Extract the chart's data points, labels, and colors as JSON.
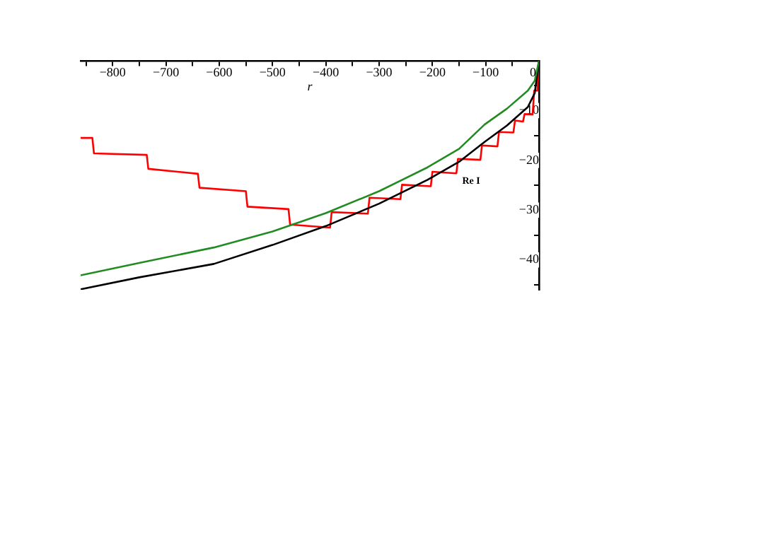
{
  "chart_data": {
    "type": "line",
    "xlabel": "r",
    "ylabel": "Re I",
    "xlim": [
      -860,
      0
    ],
    "ylim": [
      -46,
      0
    ],
    "xticks": [
      {
        "value": -850,
        "label": null
      },
      {
        "value": -800,
        "label": "−800"
      },
      {
        "value": -750,
        "label": null
      },
      {
        "value": -700,
        "label": "−700"
      },
      {
        "value": -650,
        "label": null
      },
      {
        "value": -600,
        "label": "−600"
      },
      {
        "value": -550,
        "label": null
      },
      {
        "value": -500,
        "label": "−500"
      },
      {
        "value": -450,
        "label": null
      },
      {
        "value": -400,
        "label": "−400"
      },
      {
        "value": -350,
        "label": null
      },
      {
        "value": -300,
        "label": "−300"
      },
      {
        "value": -250,
        "label": null
      },
      {
        "value": -200,
        "label": "−200"
      },
      {
        "value": -150,
        "label": null
      },
      {
        "value": -100,
        "label": "−100"
      },
      {
        "value": -50,
        "label": null
      },
      {
        "value": 0,
        "label": "0"
      }
    ],
    "yticks": [
      {
        "value": -45,
        "label": null
      },
      {
        "value": -40,
        "label": "−40"
      },
      {
        "value": -35,
        "label": null
      },
      {
        "value": -30,
        "label": "−30"
      },
      {
        "value": -25,
        "label": null
      },
      {
        "value": -20,
        "label": "−20"
      },
      {
        "value": -15,
        "label": null
      },
      {
        "value": -10,
        "label": "−10"
      },
      {
        "value": -5,
        "label": null
      }
    ],
    "grid": false,
    "legend": false,
    "marker": "none",
    "line_style": "solid",
    "series": [
      {
        "color": "#228b22",
        "x": [
          -860,
          -750,
          -610,
          -500,
          -400,
          -300,
          -209,
          -150,
          -102,
          -60,
          -21,
          -8,
          0
        ],
        "values": [
          -43.1,
          -40.6,
          -37.5,
          -34.3,
          -30.6,
          -26.2,
          -21.4,
          -17.7,
          -12.8,
          -9.6,
          -6,
          -4,
          0
        ]
      },
      {
        "color": "#000000",
        "x": [
          -860,
          -750,
          -610,
          -500,
          -400,
          -300,
          -209,
          -150,
          -102,
          -60,
          -21,
          -8,
          0
        ],
        "values": [
          -45.9,
          -43.5,
          -40.8,
          -37,
          -33.2,
          -28.7,
          -23.9,
          -20.3,
          -16.3,
          -13,
          -9.3,
          -6.5,
          0
        ]
      },
      {
        "color": "#ff0000",
        "x": [
          -860,
          -838,
          -835,
          -736,
          -733,
          -640,
          -637,
          -550,
          -547,
          -470,
          -467,
          -392,
          -389,
          -321,
          -318,
          -260,
          -257,
          -203,
          -200,
          -155,
          -152,
          -110,
          -107,
          -78,
          -75,
          -48,
          -45,
          -30,
          -27,
          -12,
          -9,
          -3,
          0
        ],
        "values": [
          -15.5,
          -15.5,
          -18.6,
          -18.9,
          -21.7,
          -22.7,
          -25.5,
          -26.2,
          -29.3,
          -29.8,
          -32.9,
          -33.5,
          -30.4,
          -30.7,
          -27.5,
          -27.8,
          -24.9,
          -25.2,
          -22.3,
          -22.6,
          -19.7,
          -19.9,
          -17,
          -17.2,
          -14.3,
          -14.4,
          -12,
          -12.2,
          -10.7,
          -10.8,
          -6,
          -6,
          0
        ]
      }
    ]
  }
}
